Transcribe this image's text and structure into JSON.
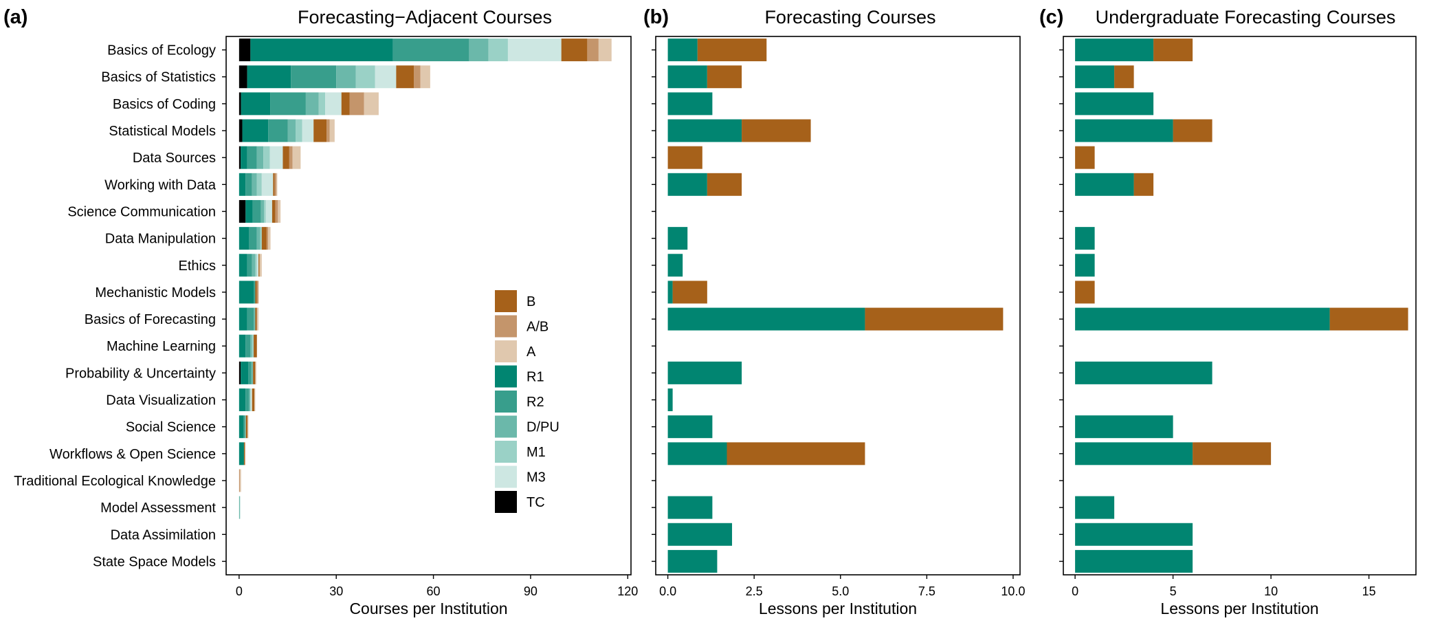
{
  "figure": {
    "colors": {
      "B": "#a6611a",
      "A/B": "#c4956b",
      "A": "#e0c8ae",
      "R1": "#018571",
      "R2": "#389e8c",
      "D/PU": "#6bb8aa",
      "M1": "#9ad1c6",
      "M3": "#cde7e2",
      "TC": "#000000"
    },
    "legend": [
      "B",
      "A/B",
      "A",
      "R1",
      "R2",
      "D/PU",
      "M1",
      "M3",
      "TC"
    ]
  },
  "chart_data": [
    {
      "type": "bar",
      "orientation": "horizontal",
      "stacked": true,
      "panel_label": "(a)",
      "title": "Forecasting−Adjacent Courses",
      "xlabel": "Courses per Institution",
      "ylabel": "",
      "xlim": [
        -4,
        121
      ],
      "xticks": [
        0,
        30,
        60,
        90,
        120
      ],
      "xtick_labels": [
        "0",
        "30",
        "60",
        "90",
        "120"
      ],
      "categories": [
        "Basics of Ecology",
        "Basics of Statistics",
        "Basics of Coding",
        "Statistical Models",
        "Data Sources",
        "Working with Data",
        "Science Communication",
        "Data Manipulation",
        "Ethics",
        "Mechanistic Models",
        "Basics of Forecasting",
        "Machine Learning",
        "Probability & Uncertainty",
        "Data Visualization",
        "Social Science",
        "Workflows & Open Science",
        "Traditional Ecological Knowledge",
        "Model Assessment",
        "Data Assimilation",
        "State Space Models"
      ],
      "legend_position": "bottom-right",
      "series": [
        {
          "name": "TC",
          "values": [
            3.5,
            2.5,
            0.6,
            1.0,
            0.5,
            0,
            2.0,
            0,
            0,
            0,
            0,
            0,
            0.5,
            0,
            0,
            0,
            0,
            0,
            0,
            0
          ]
        },
        {
          "name": "R1",
          "values": [
            44,
            13.5,
            9,
            8,
            2,
            2,
            2.2,
            3,
            2.5,
            4.5,
            2.5,
            2,
            2.3,
            2,
            1.3,
            1.5,
            0,
            0,
            0,
            0
          ]
        },
        {
          "name": "R2",
          "values": [
            23.5,
            14,
            11,
            6,
            3,
            2,
            2.5,
            2.5,
            1.5,
            0.5,
            2,
            1.5,
            1,
            1,
            0.5,
            0,
            0,
            0,
            0,
            0
          ]
        },
        {
          "name": "D/PU",
          "values": [
            6,
            6,
            4,
            2.5,
            2,
            1.5,
            1,
            1,
            1,
            0,
            0.5,
            0.5,
            0.5,
            0.5,
            0.3,
            0,
            0,
            0.3,
            0,
            0
          ]
        },
        {
          "name": "M1",
          "values": [
            6,
            6,
            2,
            2,
            2,
            1.5,
            0.5,
            0.5,
            0.5,
            0,
            0,
            0.5,
            0,
            0,
            0,
            0,
            0,
            0,
            0,
            0
          ]
        },
        {
          "name": "M3",
          "values": [
            16.5,
            6.5,
            5,
            3.5,
            4,
            3.5,
            2,
            0,
            0.5,
            0,
            0,
            0,
            0,
            0.5,
            0,
            0,
            0,
            0,
            0,
            0
          ]
        },
        {
          "name": "B",
          "values": [
            8,
            5.5,
            2.5,
            4,
            2,
            0.5,
            1,
            1.5,
            0.3,
            0.5,
            0.5,
            1,
            0.7,
            0.7,
            0.5,
            0.3,
            0,
            0,
            0,
            0
          ]
        },
        {
          "name": "A/B",
          "values": [
            3.5,
            2,
            4.5,
            1,
            1,
            0.5,
            0.8,
            0.5,
            0,
            0.5,
            0,
            0,
            0,
            0,
            0,
            0,
            0.3,
            0,
            0,
            0
          ]
        },
        {
          "name": "A",
          "values": [
            4,
            3,
            4.5,
            1.5,
            2.5,
            0.3,
            0.8,
            0.7,
            0.7,
            0,
            0.5,
            0,
            0.3,
            0.3,
            0.3,
            0.2,
            0.3,
            0,
            0,
            0
          ]
        }
      ]
    },
    {
      "type": "bar",
      "orientation": "horizontal",
      "stacked": true,
      "panel_label": "(b)",
      "title": "Forecasting Courses",
      "xlabel": "Lessons per Institution",
      "ylabel": "",
      "xlim": [
        -0.35,
        10.2
      ],
      "xticks": [
        0,
        2.5,
        5,
        7.5,
        10
      ],
      "xtick_labels": [
        "0.0",
        "2.5",
        "5.0",
        "7.5",
        "10.0"
      ],
      "categories": [
        "Basics of Ecology",
        "Basics of Statistics",
        "Basics of Coding",
        "Statistical Models",
        "Data Sources",
        "Working with Data",
        "Science Communication",
        "Data Manipulation",
        "Ethics",
        "Mechanistic Models",
        "Basics of Forecasting",
        "Machine Learning",
        "Probability & Uncertainty",
        "Data Visualization",
        "Social Science",
        "Workflows & Open Science",
        "Traditional Ecological Knowledge",
        "Model Assessment",
        "Data Assimilation",
        "State Space Models"
      ],
      "series": [
        {
          "name": "R1",
          "values": [
            0.86,
            1.14,
            1.29,
            2.14,
            0,
            1.14,
            0,
            0.57,
            0.43,
            0.14,
            5.71,
            0,
            2.14,
            0.14,
            1.29,
            1.71,
            0,
            1.29,
            1.86,
            1.43
          ]
        },
        {
          "name": "B",
          "values": [
            2.0,
            1.0,
            0,
            2.0,
            1.0,
            1.0,
            0,
            0,
            0,
            1.0,
            4.0,
            0,
            0,
            0,
            0,
            4.0,
            0,
            0,
            0,
            0
          ]
        }
      ]
    },
    {
      "type": "bar",
      "orientation": "horizontal",
      "stacked": true,
      "panel_label": "(c)",
      "title": "Undergraduate Forecasting Courses",
      "xlabel": "Lessons per Institution",
      "ylabel": "",
      "xlim": [
        -0.6,
        17.4
      ],
      "xticks": [
        0,
        5,
        10,
        15
      ],
      "xtick_labels": [
        "0",
        "5",
        "10",
        "15"
      ],
      "categories": [
        "Basics of Ecology",
        "Basics of Statistics",
        "Basics of Coding",
        "Statistical Models",
        "Data Sources",
        "Working with Data",
        "Science Communication",
        "Data Manipulation",
        "Ethics",
        "Mechanistic Models",
        "Basics of Forecasting",
        "Machine Learning",
        "Probability & Uncertainty",
        "Data Visualization",
        "Social Science",
        "Workflows & Open Science",
        "Traditional Ecological Knowledge",
        "Model Assessment",
        "Data Assimilation",
        "State Space Models"
      ],
      "series": [
        {
          "name": "R1",
          "values": [
            4,
            2,
            4,
            5,
            0,
            3,
            0,
            1,
            1,
            0,
            13,
            0,
            7,
            0,
            5,
            6,
            0,
            2,
            6,
            6
          ]
        },
        {
          "name": "B",
          "values": [
            2,
            1,
            0,
            2,
            1,
            1,
            0,
            0,
            0,
            1,
            4,
            0,
            0,
            0,
            0,
            4,
            0,
            0,
            0,
            0
          ]
        }
      ]
    }
  ]
}
